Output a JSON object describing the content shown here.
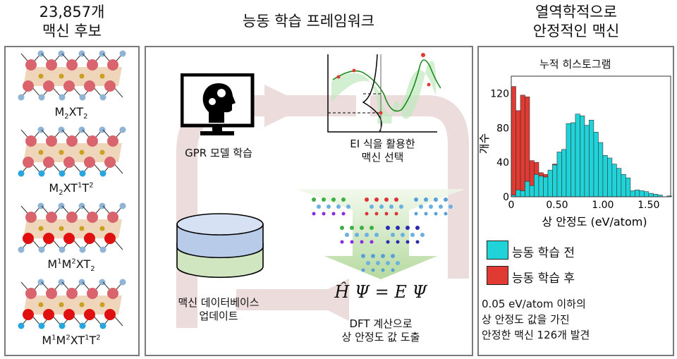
{
  "left": {
    "title_line1": "23,857개",
    "title_line2": "맥신 후보",
    "structures": [
      {
        "formula_html": "M<sub>2</sub>XT<sub>2</sub>",
        "bottom_metal": "#d9646e",
        "bottom_term": "#8fb4d6"
      },
      {
        "formula_html": "M<sub>2</sub>XT<sup>1</sup>T<sup>2</sup>",
        "bottom_metal": "#d9646e",
        "bottom_term": "#2aa6de"
      },
      {
        "formula_html": "M<sup>1</sup>M<sup>2</sup>XT<sub>2</sub>",
        "bottom_metal": "#e01010",
        "bottom_term": "#8fb4d6"
      },
      {
        "formula_html": "M<sup>1</sup>M<sup>2</sup>XT<sup>1</sup>T<sup>2</sup>",
        "bottom_metal": "#e01010",
        "bottom_term": "#2aa6de"
      }
    ]
  },
  "middle": {
    "title": "능동 학습 프레임워크",
    "gpr_label": "GPR 모델 학습",
    "ei_label_line1": "EI 식을 활용한",
    "ei_label_line2": "맥신 선택",
    "db_label_line1": "맥신 데이터베이스",
    "db_label_line2": "업데이트",
    "equation": "Ĥ Ψ = E Ψ",
    "dft_label_line1": "DFT 계산으로",
    "dft_label_line2": "상 안정도 값 도출"
  },
  "right": {
    "title_line1": "열역학적으로",
    "title_line2": "안정적인 맥신",
    "legend": [
      {
        "label": "능동 학습 전",
        "color": "#1fd3d8"
      },
      {
        "label": "능동 학습 후",
        "color": "#e03a32"
      }
    ],
    "note_line1": "0.05 eV/atom 이하의",
    "note_line2": "상 안정도 값을 가진",
    "note_line3": "안정한 맥신 126개 발견"
  },
  "chart_data": {
    "type": "bar",
    "stacked": true,
    "title": "누적 히스토그램",
    "xlabel": "상 안정도 (eV/atom)",
    "ylabel": "개수",
    "xlim": [
      0,
      1.74
    ],
    "ylim": [
      0,
      140
    ],
    "xticks": [
      0,
      0.5,
      1.0,
      1.5
    ],
    "xtick_labels": [
      "0",
      "0.50",
      "1.00",
      "1.50"
    ],
    "yticks": [
      0,
      40,
      80,
      120
    ],
    "ytick_labels": [
      "0",
      "40",
      "80",
      "120"
    ],
    "bin_width": 0.05,
    "bin_starts": [
      0,
      0.05,
      0.1,
      0.15,
      0.2,
      0.25,
      0.3,
      0.35,
      0.4,
      0.45,
      0.5,
      0.55,
      0.6,
      0.65,
      0.7,
      0.75,
      0.8,
      0.85,
      0.9,
      0.95,
      1.0,
      1.05,
      1.1,
      1.15,
      1.2,
      1.25,
      1.3,
      1.35,
      1.4,
      1.45,
      1.5,
      1.55,
      1.6,
      1.65,
      1.7
    ],
    "series": [
      {
        "name": "능동 학습 전",
        "color": "#1fd3d8",
        "values": [
          2,
          8,
          7,
          18,
          13,
          26,
          24,
          23,
          31,
          37,
          52,
          55,
          85,
          86,
          96,
          94,
          83,
          89,
          75,
          63,
          48,
          45,
          38,
          33,
          26,
          22,
          7,
          8,
          7,
          6,
          4,
          3,
          2,
          0,
          1
        ]
      },
      {
        "name": "능동 학습 후",
        "color": "#e03a32",
        "values": [
          126,
          92,
          111,
          98,
          29,
          14,
          4,
          3,
          0,
          1,
          0,
          0,
          0,
          0,
          0,
          0,
          0,
          0,
          0,
          0,
          0,
          0,
          0,
          0,
          0,
          0,
          0,
          0,
          0,
          0,
          0,
          0,
          0,
          0,
          0
        ]
      }
    ]
  }
}
